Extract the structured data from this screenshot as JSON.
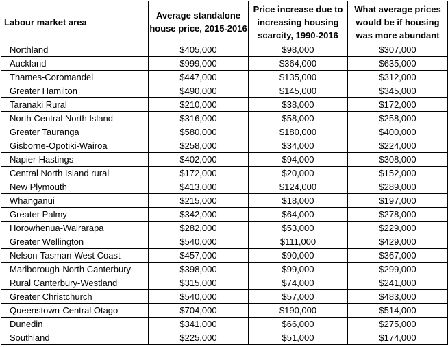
{
  "table": {
    "headers": [
      "Labour market area",
      "Average standalone house price, 2015-2016",
      "Price increase due to increasing housing scarcity, 1990-2016",
      "What average prices would be if housing was more abundant"
    ],
    "rows": [
      [
        "Northland",
        "$405,000",
        "$98,000",
        "$307,000"
      ],
      [
        "Auckland",
        "$999,000",
        "$364,000",
        "$635,000"
      ],
      [
        "Thames-Coromandel",
        "$447,000",
        "$135,000",
        "$312,000"
      ],
      [
        "Greater Hamilton",
        "$490,000",
        "$145,000",
        "$345,000"
      ],
      [
        "Taranaki Rural",
        "$210,000",
        "$38,000",
        "$172,000"
      ],
      [
        "North Central North Island",
        "$316,000",
        "$58,000",
        "$258,000"
      ],
      [
        "Greater Tauranga",
        "$580,000",
        "$180,000",
        "$400,000"
      ],
      [
        "Gisborne-Opotiki-Wairoa",
        "$258,000",
        "$34,000",
        "$224,000"
      ],
      [
        "Napier-Hastings",
        "$402,000",
        "$94,000",
        "$308,000"
      ],
      [
        "Central North Island rural",
        "$172,000",
        "$20,000",
        "$152,000"
      ],
      [
        "New Plymouth",
        "$413,000",
        "$124,000",
        "$289,000"
      ],
      [
        "Whanganui",
        "$215,000",
        "$18,000",
        "$197,000"
      ],
      [
        "Greater Palmy",
        "$342,000",
        "$64,000",
        "$278,000"
      ],
      [
        "Horowhenua-Wairarapa",
        "$282,000",
        "$53,000",
        "$229,000"
      ],
      [
        "Greater Wellington",
        "$540,000",
        "$111,000",
        "$429,000"
      ],
      [
        "Nelson-Tasman-West Coast",
        "$457,000",
        "$90,000",
        "$367,000"
      ],
      [
        "Marlborough-North Canterbury",
        "$398,000",
        "$99,000",
        "$299,000"
      ],
      [
        "Rural Canterbury-Westland",
        "$315,000",
        "$74,000",
        "$241,000"
      ],
      [
        "Greater Christchurch",
        "$540,000",
        "$57,000",
        "$483,000"
      ],
      [
        "Queenstown-Central Otago",
        "$704,000",
        "$190,000",
        "$514,000"
      ],
      [
        "Dunedin",
        "$341,000",
        "$66,000",
        "$275,000"
      ],
      [
        "Southland",
        "$225,000",
        "$51,000",
        "$174,000"
      ]
    ]
  }
}
